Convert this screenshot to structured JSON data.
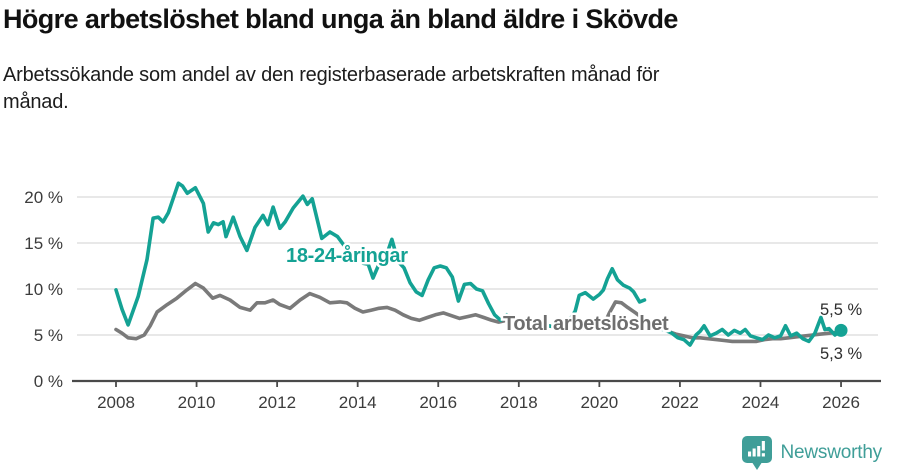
{
  "header": {
    "title": "Högre arbetslöshet bland unga än bland äldre i Skövde",
    "subtitle": "Arbetssökande som andel av den registerbaserade arbetskraften månad för\nmånad."
  },
  "footer": {
    "brand": "Newsworthy",
    "logo_icon": "newsworthy-pin-barchart-icon"
  },
  "colors": {
    "youth_line": "#14a294",
    "total_line": "#7a7a7a",
    "total_label": "#6e6e6e",
    "axis_text": "#3c3c3c",
    "end_label_text": "#2e2e2e",
    "gridline": "#e0e0e0",
    "axis_line": "#4a4a4a",
    "brand_teal": "#3f9e98"
  },
  "chart_data": {
    "type": "line",
    "title": "Högre arbetslöshet bland unga än bland äldre i Skövde",
    "subtitle": "Arbetssökande som andel av den registerbaserade arbetskraften månad för månad.",
    "unit": "%",
    "x_range": [
      2007.85,
      2026.4
    ],
    "ylim": [
      0,
      22
    ],
    "grid": "horizontal",
    "legend_position": "inline-labels",
    "x_ticks": [
      {
        "value": 2008,
        "label": "2008"
      },
      {
        "value": 2010,
        "label": "2010"
      },
      {
        "value": 2012,
        "label": "2012"
      },
      {
        "value": 2014,
        "label": "2014"
      },
      {
        "value": 2016,
        "label": "2016"
      },
      {
        "value": 2018,
        "label": "2018"
      },
      {
        "value": 2020,
        "label": "2020"
      },
      {
        "value": 2022,
        "label": "2022"
      },
      {
        "value": 2024,
        "label": "2024"
      },
      {
        "value": 2026,
        "label": "2026"
      }
    ],
    "y_ticks": [
      {
        "value": 0,
        "label": "0 %"
      },
      {
        "value": 5,
        "label": "5 %"
      },
      {
        "value": 10,
        "label": "10 %"
      },
      {
        "value": 15,
        "label": "15 %"
      },
      {
        "value": 20,
        "label": "20 %"
      }
    ],
    "series": [
      {
        "name": "18-24-åringar",
        "color": "#14a294",
        "end_label": "5,5 %",
        "end_value": 5.5,
        "end_dot": true,
        "segments": [
          [
            [
              2008.0,
              9.9
            ],
            [
              2008.15,
              7.8
            ],
            [
              2008.3,
              6.1
            ],
            [
              2008.55,
              9.2
            ],
            [
              2008.77,
              13.2
            ],
            [
              2008.92,
              17.7
            ],
            [
              2009.05,
              17.8
            ],
            [
              2009.17,
              17.3
            ],
            [
              2009.3,
              18.3
            ],
            [
              2009.55,
              21.5
            ],
            [
              2009.65,
              21.2
            ],
            [
              2009.77,
              20.4
            ],
            [
              2009.97,
              21.0
            ],
            [
              2010.17,
              19.3
            ],
            [
              2010.29,
              16.2
            ],
            [
              2010.42,
              17.2
            ],
            [
              2010.54,
              17.0
            ],
            [
              2010.66,
              17.3
            ],
            [
              2010.73,
              15.7
            ],
            [
              2010.91,
              17.8
            ],
            [
              2011.08,
              15.7
            ],
            [
              2011.25,
              14.2
            ],
            [
              2011.45,
              16.7
            ],
            [
              2011.65,
              18.0
            ],
            [
              2011.77,
              17.0
            ],
            [
              2011.9,
              18.9
            ],
            [
              2012.07,
              16.6
            ],
            [
              2012.2,
              17.3
            ],
            [
              2012.4,
              18.8
            ],
            [
              2012.64,
              20.1
            ],
            [
              2012.75,
              19.2
            ],
            [
              2012.87,
              19.8
            ],
            [
              2013.11,
              15.5
            ],
            [
              2013.31,
              16.2
            ],
            [
              2013.5,
              15.7
            ],
            [
              2013.7,
              14.5
            ],
            [
              2013.9,
              13.4
            ],
            [
              2014.13,
              12.8
            ],
            [
              2014.26,
              12.7
            ],
            [
              2014.38,
              11.2
            ],
            [
              2014.55,
              12.9
            ],
            [
              2014.7,
              13.5
            ],
            [
              2014.85,
              15.4
            ],
            [
              2015.0,
              13.0
            ],
            [
              2015.15,
              12.3
            ],
            [
              2015.3,
              10.7
            ],
            [
              2015.45,
              9.7
            ],
            [
              2015.6,
              9.3
            ],
            [
              2015.75,
              11.0
            ],
            [
              2015.9,
              12.3
            ],
            [
              2016.05,
              12.5
            ],
            [
              2016.2,
              12.3
            ],
            [
              2016.35,
              11.3
            ],
            [
              2016.5,
              8.7
            ],
            [
              2016.65,
              10.5
            ],
            [
              2016.8,
              10.6
            ],
            [
              2016.95,
              10.0
            ],
            [
              2017.1,
              9.8
            ],
            [
              2017.25,
              8.4
            ],
            [
              2017.4,
              7.2
            ],
            [
              2017.55,
              6.6
            ],
            [
              2017.7,
              7.2
            ],
            [
              2017.85,
              6.4
            ],
            [
              2018.05,
              6.0
            ],
            [
              2018.25,
              5.8
            ],
            [
              2018.45,
              5.9
            ],
            [
              2018.65,
              6.1
            ],
            [
              2018.85,
              5.9
            ],
            [
              2019.05,
              6.2
            ],
            [
              2019.25,
              6.6
            ],
            [
              2019.4,
              7.6
            ],
            [
              2019.5,
              9.3
            ],
            [
              2019.65,
              9.6
            ],
            [
              2019.85,
              8.9
            ],
            [
              2020.0,
              9.4
            ],
            [
              2020.1,
              9.9
            ],
            [
              2020.2,
              11.1
            ],
            [
              2020.32,
              12.2
            ],
            [
              2020.45,
              11.0
            ],
            [
              2020.6,
              10.4
            ],
            [
              2020.75,
              10.1
            ],
            [
              2020.85,
              9.7
            ],
            [
              2021.0,
              8.6
            ],
            [
              2021.12,
              8.8
            ]
          ],
          [
            [
              2021.5,
              5.7
            ],
            [
              2021.65,
              5.5
            ],
            [
              2021.8,
              5.2
            ],
            [
              2021.95,
              4.7
            ],
            [
              2022.1,
              4.5
            ],
            [
              2022.25,
              3.9
            ],
            [
              2022.4,
              5.0
            ],
            [
              2022.5,
              5.4
            ],
            [
              2022.6,
              6.0
            ],
            [
              2022.75,
              4.9
            ],
            [
              2022.9,
              5.2
            ],
            [
              2023.05,
              5.6
            ],
            [
              2023.2,
              5.0
            ],
            [
              2023.35,
              5.5
            ],
            [
              2023.5,
              5.2
            ],
            [
              2023.62,
              5.6
            ],
            [
              2023.75,
              4.9
            ],
            [
              2023.9,
              4.7
            ],
            [
              2024.05,
              4.5
            ],
            [
              2024.2,
              5.0
            ],
            [
              2024.35,
              4.7
            ],
            [
              2024.5,
              4.9
            ],
            [
              2024.62,
              6.0
            ],
            [
              2024.75,
              4.9
            ],
            [
              2024.9,
              5.2
            ],
            [
              2025.05,
              4.6
            ],
            [
              2025.2,
              4.3
            ],
            [
              2025.35,
              5.2
            ],
            [
              2025.5,
              6.9
            ],
            [
              2025.6,
              5.6
            ],
            [
              2025.7,
              5.7
            ],
            [
              2025.85,
              5.0
            ],
            [
              2026.0,
              5.5
            ]
          ]
        ]
      },
      {
        "name": "Total arbetslöshet",
        "color": "#7a7a7a",
        "end_label": "5,3 %",
        "end_value": 5.3,
        "end_dot": false,
        "segments": [
          [
            [
              2008.0,
              5.6
            ],
            [
              2008.15,
              5.2
            ],
            [
              2008.3,
              4.7
            ],
            [
              2008.5,
              4.6
            ],
            [
              2008.7,
              5.0
            ],
            [
              2008.85,
              6.0
            ],
            [
              2009.02,
              7.5
            ],
            [
              2009.27,
              8.3
            ],
            [
              2009.51,
              9.0
            ],
            [
              2009.76,
              9.9
            ],
            [
              2009.97,
              10.6
            ],
            [
              2010.17,
              10.1
            ],
            [
              2010.4,
              9.0
            ],
            [
              2010.58,
              9.3
            ],
            [
              2010.83,
              8.8
            ],
            [
              2011.08,
              8.0
            ],
            [
              2011.33,
              7.7
            ],
            [
              2011.5,
              8.5
            ],
            [
              2011.7,
              8.5
            ],
            [
              2011.9,
              8.8
            ],
            [
              2012.07,
              8.3
            ],
            [
              2012.32,
              7.9
            ],
            [
              2012.57,
              8.8
            ],
            [
              2012.81,
              9.5
            ],
            [
              2013.06,
              9.1
            ],
            [
              2013.31,
              8.5
            ],
            [
              2013.56,
              8.6
            ],
            [
              2013.73,
              8.5
            ],
            [
              2013.93,
              7.9
            ],
            [
              2014.13,
              7.5
            ],
            [
              2014.33,
              7.7
            ],
            [
              2014.53,
              7.9
            ],
            [
              2014.73,
              8.0
            ],
            [
              2014.93,
              7.7
            ],
            [
              2015.13,
              7.2
            ],
            [
              2015.33,
              6.8
            ],
            [
              2015.53,
              6.6
            ],
            [
              2015.73,
              6.9
            ],
            [
              2015.93,
              7.2
            ],
            [
              2016.13,
              7.4
            ],
            [
              2016.33,
              7.1
            ],
            [
              2016.53,
              6.8
            ],
            [
              2016.73,
              7.0
            ],
            [
              2016.93,
              7.2
            ],
            [
              2017.13,
              6.9
            ],
            [
              2017.33,
              6.6
            ],
            [
              2017.5,
              6.4
            ],
            [
              2017.7,
              6.6
            ],
            [
              2017.9,
              6.5
            ],
            [
              2018.1,
              6.4
            ],
            [
              2018.3,
              6.3
            ],
            [
              2018.5,
              6.2
            ],
            [
              2018.7,
              6.0
            ],
            [
              2018.9,
              5.9
            ],
            [
              2019.1,
              5.9
            ],
            [
              2019.3,
              5.8
            ],
            [
              2019.5,
              5.7
            ],
            [
              2019.7,
              5.7
            ],
            [
              2019.9,
              5.8
            ],
            [
              2020.1,
              6.0
            ],
            [
              2020.25,
              7.4
            ],
            [
              2020.4,
              8.6
            ],
            [
              2020.55,
              8.5
            ],
            [
              2020.7,
              8.0
            ],
            [
              2020.9,
              7.4
            ],
            [
              2021.12,
              6.7
            ]
          ],
          [
            [
              2021.5,
              5.8
            ],
            [
              2021.7,
              5.4
            ],
            [
              2021.9,
              5.1
            ],
            [
              2022.1,
              4.9
            ],
            [
              2022.3,
              4.7
            ],
            [
              2022.5,
              4.7
            ],
            [
              2022.7,
              4.6
            ],
            [
              2022.9,
              4.5
            ],
            [
              2023.1,
              4.4
            ],
            [
              2023.3,
              4.3
            ],
            [
              2023.5,
              4.3
            ],
            [
              2023.7,
              4.3
            ],
            [
              2023.9,
              4.3
            ],
            [
              2024.1,
              4.5
            ],
            [
              2024.3,
              4.6
            ],
            [
              2024.5,
              4.6
            ],
            [
              2024.7,
              4.7
            ],
            [
              2024.9,
              4.8
            ],
            [
              2025.1,
              4.9
            ],
            [
              2025.3,
              5.0
            ],
            [
              2025.5,
              5.1
            ],
            [
              2025.7,
              5.2
            ],
            [
              2025.85,
              5.25
            ],
            [
              2026.0,
              5.3
            ]
          ]
        ]
      }
    ]
  }
}
